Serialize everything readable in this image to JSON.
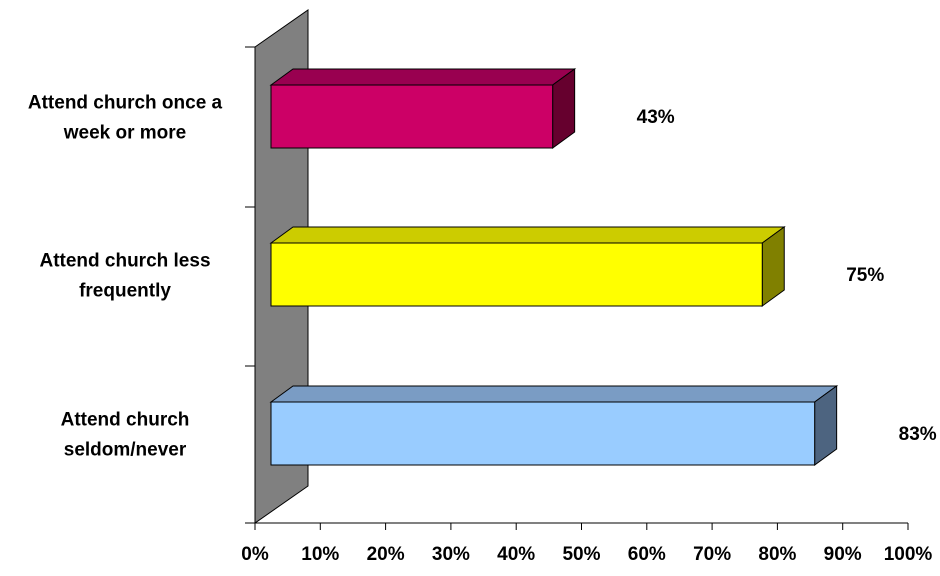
{
  "chart_data": {
    "type": "bar",
    "orientation": "horizontal",
    "style": "3d",
    "categories": [
      [
        "Attend church once a",
        "week or more"
      ],
      [
        "Attend church less",
        "frequently"
      ],
      [
        "Attend church",
        "seldom/never"
      ]
    ],
    "values": [
      43,
      75,
      83
    ],
    "value_labels": [
      "43%",
      "75%",
      "83%"
    ],
    "bar_colors": [
      {
        "front": "#CC0066",
        "top": "#990050",
        "side": "#66002E"
      },
      {
        "front": "#FFFF00",
        "top": "#CCCC00",
        "side": "#808000"
      },
      {
        "front": "#99CCFF",
        "top": "#7A9CC4",
        "side": "#4D6480"
      }
    ],
    "wall_color": "#808080",
    "xlim": [
      0,
      100
    ],
    "xticks": [
      0,
      10,
      20,
      30,
      40,
      50,
      60,
      70,
      80,
      90,
      100
    ],
    "xtick_labels": [
      "0%",
      "10%",
      "20%",
      "30%",
      "40%",
      "50%",
      "60%",
      "70%",
      "80%",
      "90%",
      "100%"
    ],
    "title": "",
    "xlabel": "",
    "ylabel": "",
    "grid": false,
    "legend": "none"
  }
}
